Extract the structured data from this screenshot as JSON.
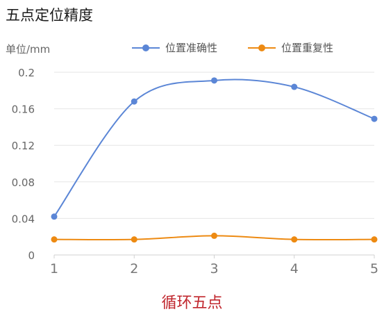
{
  "chart_data": {
    "type": "line",
    "title": "五点定位精度",
    "ylabel": "单位/mm",
    "xlabel": "循环五点",
    "categories": [
      "1",
      "2",
      "3",
      "4",
      "5"
    ],
    "series": [
      {
        "name": "位置准确性",
        "color": "#5b86d6",
        "values": [
          0.042,
          0.168,
          0.191,
          0.184,
          0.149
        ]
      },
      {
        "name": "位置重复性",
        "color": "#ed8a12",
        "values": [
          0.017,
          0.017,
          0.021,
          0.017,
          0.017
        ]
      }
    ],
    "ylim": [
      0,
      0.2
    ],
    "yticks": [
      "0",
      "0.04",
      "0.08",
      "0.12",
      "0.16",
      "0.2"
    ],
    "grid": true,
    "legend_position": "top",
    "xlabel_color": "#c0262d"
  }
}
